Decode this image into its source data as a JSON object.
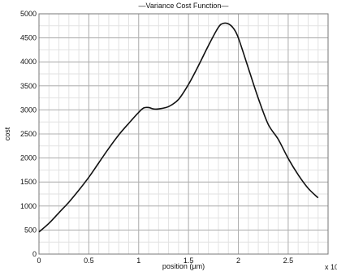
{
  "chart_data": {
    "type": "line",
    "title": "—Variance Cost Function—",
    "xlabel": "position (µm)",
    "ylabel": "cost",
    "x_multiplier_label": "x 10",
    "xlim": [
      0,
      2.9
    ],
    "ylim": [
      0,
      5000
    ],
    "x_ticks": [
      0,
      0.5,
      1,
      1.5,
      2,
      2.5
    ],
    "x_tick_labels": [
      "0",
      "0.5",
      "1",
      "1.5",
      "2",
      "2.5"
    ],
    "y_ticks": [
      0,
      500,
      1000,
      1500,
      2000,
      2500,
      3000,
      3500,
      4000,
      4500,
      5000
    ],
    "y_tick_labels": [
      "0",
      "500",
      "1000",
      "1500",
      "2000",
      "2500",
      "3000",
      "3500",
      "4000",
      "4500",
      "5000"
    ],
    "grid": true,
    "line_color": "#111111",
    "grid_color": "#c8c8c8",
    "series": [
      {
        "x": [
          0,
          0.1,
          0.2,
          0.3,
          0.4,
          0.5,
          0.6,
          0.7,
          0.8,
          0.9,
          1.0,
          1.05,
          1.1,
          1.15,
          1.2,
          1.3,
          1.4,
          1.5,
          1.6,
          1.7,
          1.8,
          1.85,
          1.9,
          1.95,
          2.0,
          2.1,
          2.2,
          2.3,
          2.4,
          2.5,
          2.6,
          2.7,
          2.8
        ],
        "y": [
          460,
          640,
          860,
          1080,
          1330,
          1600,
          1900,
          2200,
          2480,
          2720,
          2950,
          3040,
          3050,
          3020,
          3020,
          3070,
          3220,
          3530,
          3920,
          4340,
          4720,
          4800,
          4790,
          4700,
          4500,
          3870,
          3240,
          2700,
          2390,
          1990,
          1650,
          1370,
          1170
        ]
      }
    ]
  }
}
